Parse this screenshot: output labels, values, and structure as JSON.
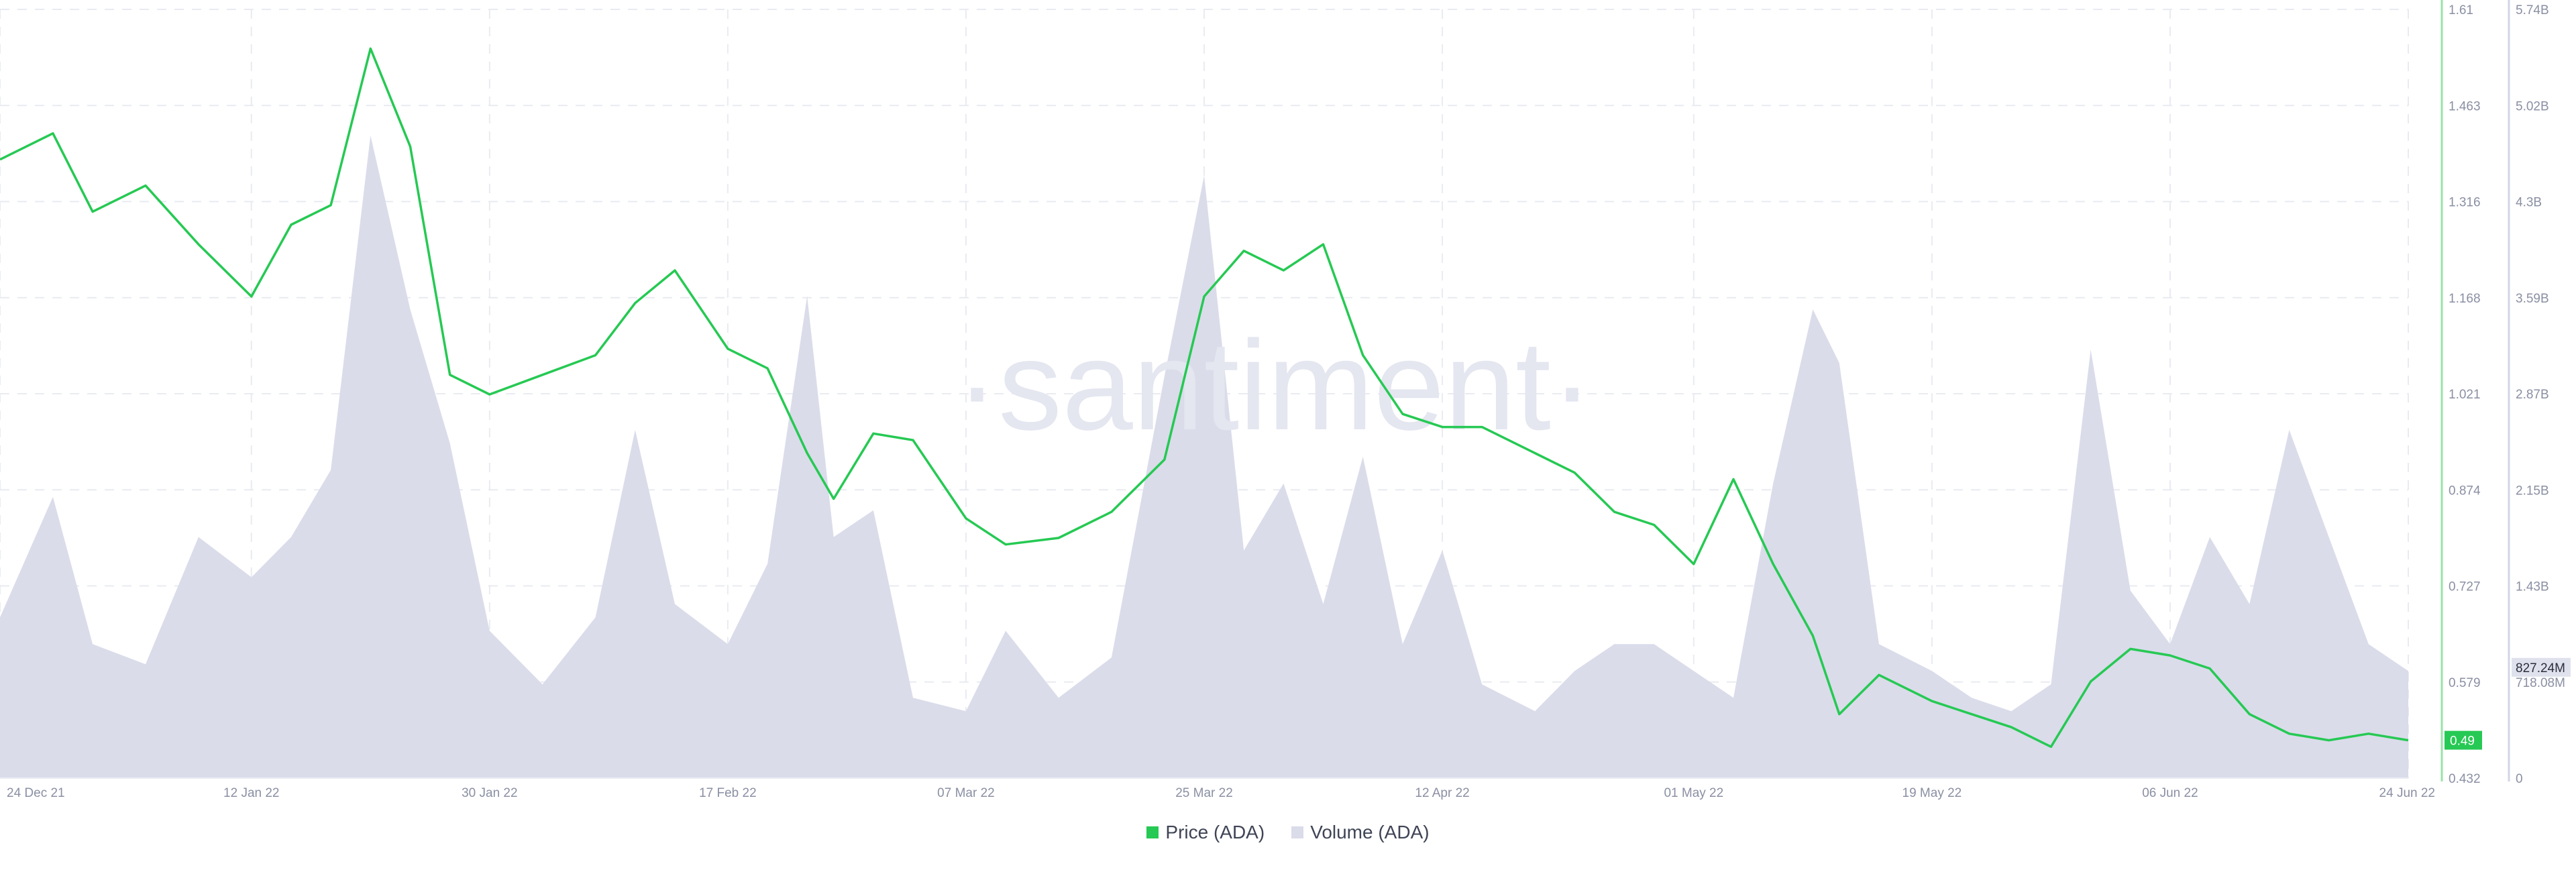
{
  "watermark": "·santiment·",
  "chart_data": {
    "type": "area",
    "x_ticks": [
      "24 Dec 21",
      "12 Jan 22",
      "30 Jan 22",
      "17 Feb 22",
      "07 Mar 22",
      "25 Mar 22",
      "12 Apr 22",
      "01 May 22",
      "19 May 22",
      "06 Jun 22",
      "24 Jun 22"
    ],
    "y_price_ticks": [
      "1.61",
      "1.463",
      "1.316",
      "1.168",
      "1.021",
      "0.874",
      "0.727",
      "0.579",
      "0.432"
    ],
    "y_volume_ticks": [
      "5.74B",
      "5.02B",
      "4.3B",
      "3.59B",
      "2.87B",
      "2.15B",
      "1.43B",
      "718.08M",
      "0"
    ],
    "y_price_range": [
      0.432,
      1.61
    ],
    "y_volume_range": [
      0,
      5.74
    ],
    "grid": true,
    "legend_position": "bottom-center",
    "series": [
      {
        "name": "Price (ADA)",
        "axis": "left",
        "color": "#26c953",
        "dates": [
          "24 Dec 21",
          "28 Dec 21",
          "31 Dec 21",
          "04 Jan 22",
          "08 Jan 22",
          "12 Jan 22",
          "15 Jan 22",
          "18 Jan 22",
          "21 Jan 22",
          "24 Jan 22",
          "27 Jan 22",
          "30 Jan 22",
          "03 Feb 22",
          "07 Feb 22",
          "10 Feb 22",
          "13 Feb 22",
          "17 Feb 22",
          "20 Feb 22",
          "23 Feb 22",
          "25 Feb 22",
          "28 Feb 22",
          "03 Mar 22",
          "07 Mar 22",
          "10 Mar 22",
          "14 Mar 22",
          "18 Mar 22",
          "22 Mar 22",
          "25 Mar 22",
          "28 Mar 22",
          "31 Mar 22",
          "03 Apr 22",
          "06 Apr 22",
          "09 Apr 22",
          "12 Apr 22",
          "15 Apr 22",
          "19 Apr 22",
          "22 Apr 22",
          "25 Apr 22",
          "28 Apr 22",
          "01 May 22",
          "04 May 22",
          "07 May 22",
          "10 May 22",
          "12 May 22",
          "15 May 22",
          "19 May 22",
          "22 May 22",
          "25 May 22",
          "28 May 22",
          "31 May 22",
          "03 Jun 22",
          "06 Jun 22",
          "09 Jun 22",
          "12 Jun 22",
          "15 Jun 22",
          "18 Jun 22",
          "21 Jun 22",
          "24 Jun 22"
        ],
        "values": [
          1.38,
          1.42,
          1.3,
          1.34,
          1.25,
          1.17,
          1.28,
          1.31,
          1.55,
          1.4,
          1.05,
          1.02,
          1.05,
          1.08,
          1.16,
          1.21,
          1.09,
          1.06,
          0.93,
          0.86,
          0.96,
          0.95,
          0.83,
          0.79,
          0.8,
          0.84,
          0.92,
          1.17,
          1.24,
          1.21,
          1.25,
          1.08,
          0.99,
          0.97,
          0.97,
          0.93,
          0.9,
          0.84,
          0.82,
          0.76,
          0.89,
          0.76,
          0.65,
          0.53,
          0.59,
          0.55,
          0.53,
          0.51,
          0.48,
          0.58,
          0.63,
          0.62,
          0.6,
          0.53,
          0.5,
          0.49,
          0.5,
          0.49
        ]
      },
      {
        "name": "Volume (ADA)",
        "axis": "right",
        "unit": "B",
        "color": "#dadcea",
        "dates": [
          "24 Dec 21",
          "28 Dec 21",
          "31 Dec 21",
          "04 Jan 22",
          "08 Jan 22",
          "12 Jan 22",
          "15 Jan 22",
          "18 Jan 22",
          "21 Jan 22",
          "24 Jan 22",
          "27 Jan 22",
          "30 Jan 22",
          "03 Feb 22",
          "07 Feb 22",
          "10 Feb 22",
          "13 Feb 22",
          "17 Feb 22",
          "20 Feb 22",
          "23 Feb 22",
          "25 Feb 22",
          "28 Feb 22",
          "03 Mar 22",
          "07 Mar 22",
          "10 Mar 22",
          "14 Mar 22",
          "18 Mar 22",
          "22 Mar 22",
          "25 Mar 22",
          "28 Mar 22",
          "31 Mar 22",
          "03 Apr 22",
          "06 Apr 22",
          "09 Apr 22",
          "12 Apr 22",
          "15 Apr 22",
          "19 Apr 22",
          "22 Apr 22",
          "25 Apr 22",
          "28 Apr 22",
          "01 May 22",
          "04 May 22",
          "07 May 22",
          "10 May 22",
          "12 May 22",
          "15 May 22",
          "19 May 22",
          "22 May 22",
          "25 May 22",
          "28 May 22",
          "31 May 22",
          "03 Jun 22",
          "06 Jun 22",
          "09 Jun 22",
          "12 Jun 22",
          "15 Jun 22",
          "18 Jun 22",
          "21 Jun 22",
          "24 Jun 22"
        ],
        "values": [
          1.2,
          2.1,
          1.0,
          0.85,
          1.8,
          1.5,
          1.8,
          2.3,
          4.8,
          3.5,
          2.5,
          1.1,
          0.7,
          1.2,
          2.6,
          1.3,
          1.0,
          1.6,
          3.6,
          1.8,
          2.0,
          0.6,
          0.5,
          1.1,
          0.6,
          0.9,
          3.0,
          4.5,
          1.7,
          2.2,
          1.3,
          2.4,
          1.0,
          1.7,
          0.7,
          0.5,
          0.8,
          1.0,
          1.0,
          0.8,
          0.6,
          2.2,
          3.5,
          3.1,
          1.0,
          0.8,
          0.6,
          0.5,
          0.7,
          3.2,
          1.4,
          1.0,
          1.8,
          1.3,
          2.6,
          1.8,
          1.0,
          0.8
        ]
      }
    ],
    "last_price_label": "0.49",
    "last_volume_label": "827.24M"
  },
  "colors": {
    "price_line": "#26c953",
    "volume_area": "#dadcea",
    "price_axis_line": "#9be2a8",
    "volume_axis_line": "#d2d5e4",
    "grid": "#e9ebf1",
    "tick_text": "#8a8fa3"
  }
}
